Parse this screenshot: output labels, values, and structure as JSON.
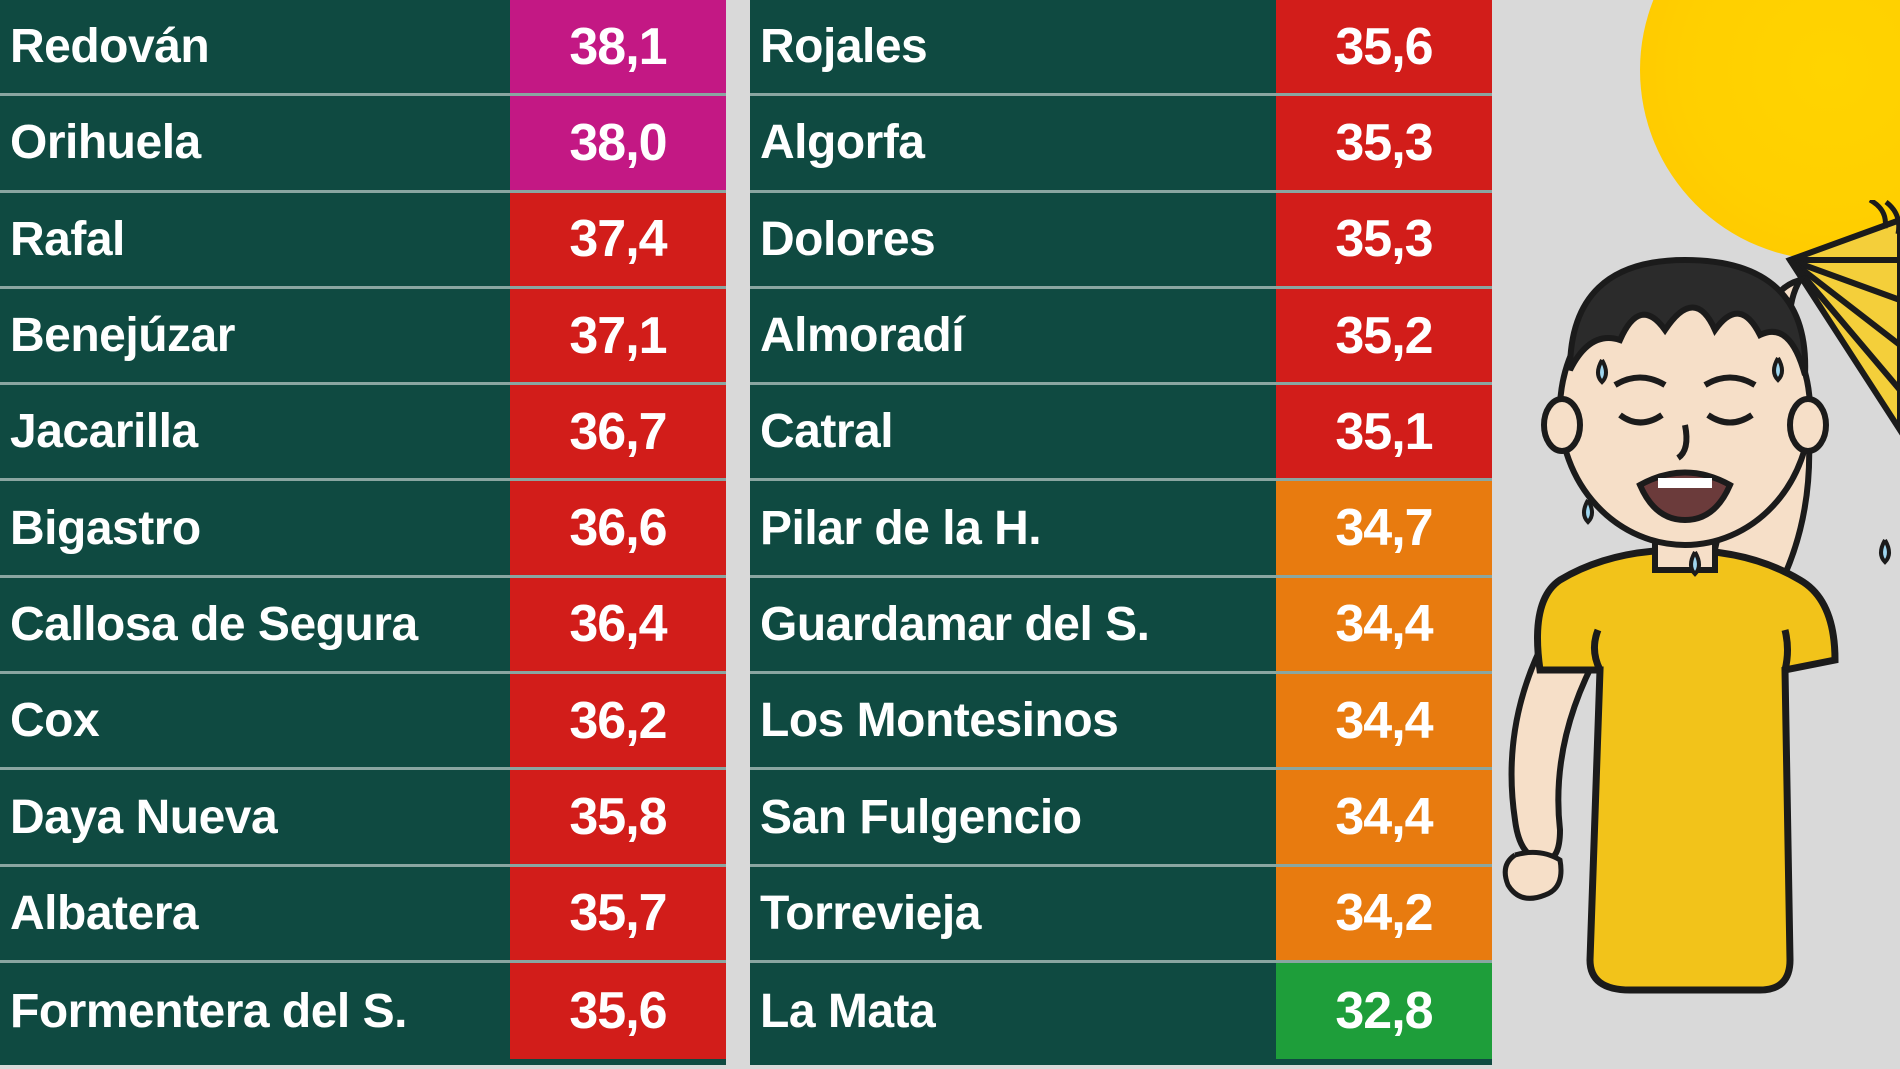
{
  "background_color": "#d9d9d9",
  "table": {
    "column_bg": "#0f4a41",
    "divider_color": "#8aa6a1",
    "name_text_color": "#ffffff",
    "value_text_color": "#ffffff",
    "name_fontsize": 48,
    "value_fontsize": 52,
    "value_colors": {
      "magenta": "#c31884",
      "red": "#d21d1a",
      "orange": "#e87b0f",
      "green": "#1e9e3a"
    },
    "left": [
      {
        "name": "Redován",
        "value": "38,1",
        "color": "magenta"
      },
      {
        "name": "Orihuela",
        "value": "38,0",
        "color": "magenta"
      },
      {
        "name": "Rafal",
        "value": "37,4",
        "color": "red"
      },
      {
        "name": "Benejúzar",
        "value": "37,1",
        "color": "red"
      },
      {
        "name": "Jacarilla",
        "value": "36,7",
        "color": "red"
      },
      {
        "name": "Bigastro",
        "value": "36,6",
        "color": "red"
      },
      {
        "name": "Callosa de Segura",
        "value": "36,4",
        "color": "red"
      },
      {
        "name": "Cox",
        "value": "36,2",
        "color": "red"
      },
      {
        "name": "Daya Nueva",
        "value": "35,8",
        "color": "red"
      },
      {
        "name": "Albatera",
        "value": "35,7",
        "color": "red"
      },
      {
        "name": "Formentera del S.",
        "value": "35,6",
        "color": "red"
      }
    ],
    "right": [
      {
        "name": "Rojales",
        "value": "35,6",
        "color": "red"
      },
      {
        "name": "Algorfa",
        "value": "35,3",
        "color": "red"
      },
      {
        "name": "Dolores",
        "value": "35,3",
        "color": "red"
      },
      {
        "name": "Almoradí",
        "value": "35,2",
        "color": "red"
      },
      {
        "name": "Catral",
        "value": "35,1",
        "color": "red"
      },
      {
        "name": "Pilar de la H.",
        "value": "34,7",
        "color": "orange"
      },
      {
        "name": "Guardamar del S.",
        "value": "34,4",
        "color": "orange"
      },
      {
        "name": "Los Montesinos",
        "value": "34,4",
        "color": "orange"
      },
      {
        "name": "San Fulgencio",
        "value": "34,4",
        "color": "orange"
      },
      {
        "name": "Torrevieja",
        "value": "34,2",
        "color": "orange"
      },
      {
        "name": "La Mata",
        "value": "32,8",
        "color": "green"
      }
    ]
  },
  "illustration": {
    "sun_color": "#ffd400",
    "shirt_color": "#f2c31a",
    "fan_color": "#f4cf3a",
    "skin_color": "#f6dfc8",
    "hair_color": "#2b2b2b",
    "outline_color": "#1b1b1b"
  }
}
